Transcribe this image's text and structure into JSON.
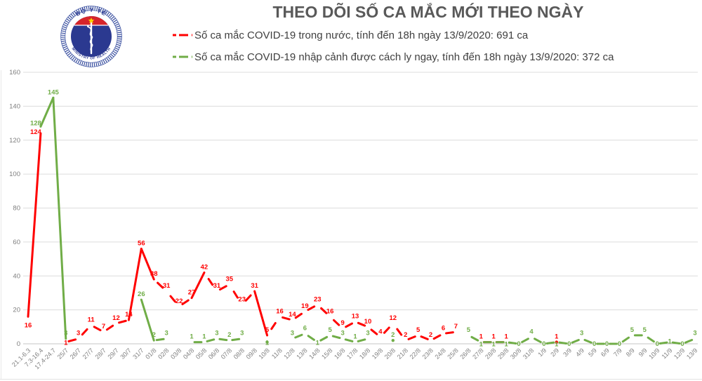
{
  "header": {
    "title": "THEO DÕI SỐ CA MẮC MỚI THEO NGÀY",
    "logo": {
      "top_text": "BỘ Y TẾ",
      "bottom_text": "MINISTRY OF HEALTH"
    }
  },
  "legend": [
    {
      "label": "Số ca mắc COVID-19 trong nước, tính đến 18h ngày 13/9/2020: 691 ca",
      "color": "#FF0000"
    },
    {
      "label": "Số ca mắc COVID-19 nhập cảnh được cách ly ngay, tính đến 18h ngày 13/9/2020: 372 ca",
      "color": "#70AD47"
    }
  ],
  "chart_data": {
    "type": "line",
    "title": "THEO DÕI SỐ CA MẮC MỚI THEO NGÀY",
    "line_style": "dashed",
    "grid": true,
    "legend_position": "top",
    "data_labels": true,
    "ylim": [
      0,
      160
    ],
    "ytick_step": 20,
    "categories": [
      "21.1-6.3",
      "7.3-16.4",
      "17.4-24.7",
      "25/7",
      "26/7",
      "27/7",
      "28/7",
      "29/7",
      "30/7",
      "31/7",
      "01/8",
      "02/8",
      "03/8",
      "04/8",
      "05/8",
      "06/8",
      "07/8",
      "08/8",
      "09/8",
      "10/8",
      "11/8",
      "12/8",
      "13/8",
      "14/8",
      "15/8",
      "16/8",
      "17/8",
      "18/8",
      "19/8",
      "20/8",
      "21/8",
      "22/8",
      "23/8",
      "24/8",
      "25/8",
      "26/8",
      "27/8",
      "28/8",
      "29/8",
      "30/8",
      "31/8",
      "1/9",
      "2/9",
      "3/9",
      "4/9",
      "5/9",
      "6/9",
      "7/9",
      "8/9",
      "9/9",
      "10/9",
      "11/9",
      "12/9",
      "13/9"
    ],
    "series": [
      {
        "name": "Số ca mắc COVID-19 trong nước",
        "total": 691,
        "color": "#FF0000",
        "values": [
          16,
          124,
          null,
          1,
          3,
          11,
          7,
          12,
          14,
          56,
          38,
          31,
          22,
          27,
          42,
          31,
          35,
          23,
          31,
          5,
          16,
          14,
          19,
          23,
          16,
          9,
          13,
          10,
          4,
          12,
          2,
          5,
          2,
          6,
          7,
          null,
          1,
          1,
          1,
          null,
          null,
          null,
          1,
          null,
          null,
          null,
          null,
          null,
          null,
          null,
          null,
          null,
          null,
          null
        ]
      },
      {
        "name": "Số ca mắc COVID-19 nhập cảnh được cách ly ngay",
        "total": 372,
        "color": "#70AD47",
        "values": [
          null,
          128,
          145,
          3,
          null,
          null,
          null,
          null,
          null,
          26,
          2,
          3,
          null,
          1,
          1,
          3,
          2,
          3,
          null,
          1,
          null,
          3,
          6,
          1,
          5,
          3,
          1,
          3,
          null,
          2,
          null,
          null,
          null,
          null,
          null,
          5,
          1,
          1,
          1,
          0,
          4,
          0,
          1,
          0,
          3,
          0,
          0,
          0,
          5,
          5,
          0,
          1,
          0,
          3
        ]
      }
    ]
  }
}
